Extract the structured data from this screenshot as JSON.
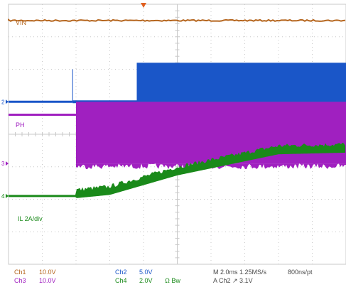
{
  "chart_data": {
    "type": "line",
    "title": "",
    "grid": true,
    "x_divisions": 10,
    "y_divisions": 8,
    "time_per_div_ms": 2.0,
    "trigger_marker": "T",
    "series": [
      {
        "name": "VIN",
        "channel": "Ch1",
        "color": "#b5651d",
        "description": "flat, constant level",
        "x_div": [
          0,
          10
        ],
        "y_div": [
          7.5,
          7.5
        ]
      },
      {
        "channel": "Ch2",
        "color": "#1a56c8",
        "ground_marker": "2",
        "description": "low until about 1.9 div, then switching to high level",
        "x_div": [
          0,
          1.9,
          1.9,
          3.8,
          3.8,
          10
        ],
        "y_div": [
          5.0,
          5.0,
          5.1,
          5.1,
          6.2,
          6.2
        ]
      },
      {
        "name": "PH",
        "channel": "Ch3",
        "color": "#a020c0",
        "ground_marker": "3",
        "description": "flat, then fast switching band after about 2 div",
        "x_div": [
          0,
          2.0,
          10
        ],
        "band_top_div": 5.0,
        "band_bottom_div": 3.1,
        "base_div": 4.6
      },
      {
        "name": "IL 2A/div",
        "channel": "Ch4",
        "color": "#1a8a1a",
        "ground_marker": "4",
        "description": "inductor current ramps up from about 2 div to 8 div",
        "x_div": [
          0,
          2.0,
          3.0,
          5.0,
          8.0,
          10
        ],
        "y_div": [
          2.1,
          2.1,
          2.2,
          2.8,
          3.45,
          3.5
        ]
      }
    ]
  },
  "status": {
    "ch1": "Ch1",
    "ch1_scale": "10.0V",
    "ch3": "Ch3",
    "ch3_scale": "10.0V",
    "ch2": "Ch2",
    "ch2_scale": "5.0V",
    "ch4": "Ch4",
    "ch4_scale": "2.0V",
    "bw": "Ω Bw",
    "timebase": "M 2.0ms 1.25MS/s",
    "record": "800ns/pt",
    "trigger": "A Ch2 ↗ 3.1V"
  },
  "colors": {
    "grid": "#c8c8c8",
    "ch1": "#b5651d",
    "ch2": "#1a56c8",
    "ch3": "#a020c0",
    "ch4": "#1a8a1a",
    "trigger": "#e06020"
  }
}
